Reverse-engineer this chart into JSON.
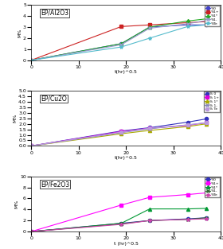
{
  "plot1": {
    "title": "EP/Al2O3",
    "xlabel": "t(hr)^0.5",
    "ylabel": "M%",
    "xlim": [
      0,
      40
    ],
    "ylim": [
      0,
      5
    ],
    "yticks": [
      0,
      1,
      2,
      3,
      4,
      5
    ],
    "xticks": [
      0,
      10,
      20,
      30,
      40
    ],
    "series": [
      {
        "label": "%0",
        "color": "#4444cc",
        "marker": "o",
        "markersize": 3,
        "x": [
          0,
          19,
          25,
          33,
          37
        ],
        "y": [
          0,
          1.5,
          3.0,
          3.2,
          3.2
        ]
      },
      {
        "label": "%1+",
        "color": "#cc2222",
        "marker": "s",
        "markersize": 3,
        "x": [
          0,
          19,
          25,
          33,
          37
        ],
        "y": [
          0,
          3.05,
          3.2,
          3.4,
          3.5
        ]
      },
      {
        "label": "%1*",
        "color": "#22aa22",
        "marker": "^",
        "markersize": 3,
        "x": [
          0,
          19,
          25,
          33,
          37
        ],
        "y": [
          0,
          1.5,
          3.0,
          3.55,
          3.75
        ]
      },
      {
        "label": "%1-",
        "color": "#9999cc",
        "marker": "x",
        "markersize": 3,
        "x": [
          0,
          19,
          25,
          33,
          37
        ],
        "y": [
          0,
          1.4,
          2.9,
          3.3,
          3.6
        ]
      },
      {
        "label": "%Te",
        "color": "#55bbcc",
        "marker": "*",
        "markersize": 3,
        "x": [
          0,
          19,
          25,
          33,
          37
        ],
        "y": [
          0,
          1.2,
          2.0,
          3.05,
          3.2
        ]
      }
    ]
  },
  "plot2": {
    "title": "EP/Cu2O",
    "xlabel": "t(hr)^0.5",
    "ylabel": "M%",
    "xlim": [
      0,
      40
    ],
    "ylim": [
      0,
      5
    ],
    "yticks": [
      0,
      0.5,
      1.0,
      1.5,
      2.0,
      2.5,
      3.0,
      3.5,
      4.0,
      4.5,
      5.0
    ],
    "xticks": [
      0,
      10,
      20,
      30,
      40
    ],
    "series": [
      {
        "label": "% 0",
        "color": "#3333bb",
        "marker": "o",
        "markersize": 3,
        "x": [
          0,
          19,
          25,
          33,
          37
        ],
        "y": [
          0,
          1.35,
          1.65,
          2.15,
          2.45
        ]
      },
      {
        "label": "% 1+",
        "color": "#dd00dd",
        "marker": "s",
        "markersize": 3,
        "x": [
          0,
          19,
          25,
          33,
          37
        ],
        "y": [
          0,
          1.3,
          1.6,
          1.85,
          2.1
        ]
      },
      {
        "label": "% 1*",
        "color": "#aaaa00",
        "marker": "^",
        "markersize": 3,
        "x": [
          0,
          19,
          25,
          33,
          37
        ],
        "y": [
          0,
          1.1,
          1.4,
          1.75,
          2.0
        ]
      },
      {
        "label": "% 1-",
        "color": "#8888bb",
        "marker": "x",
        "markersize": 3,
        "x": [
          0,
          19,
          25,
          33,
          37
        ],
        "y": [
          0,
          1.2,
          1.55,
          1.9,
          2.1
        ]
      },
      {
        "label": "% Te",
        "color": "#bb99dd",
        "marker": "o",
        "markersize": 3,
        "x": [
          0,
          19,
          25,
          33,
          37
        ],
        "y": [
          0,
          1.25,
          1.6,
          1.9,
          2.1
        ]
      }
    ]
  },
  "plot3": {
    "title": "EP/Fe2O3",
    "xlabel": "t (hr)^0.5",
    "ylabel": "M%",
    "xlim": [
      0,
      40
    ],
    "ylim": [
      0,
      10
    ],
    "yticks": [
      0,
      2,
      4,
      6,
      8,
      10
    ],
    "xticks": [
      0,
      10,
      20,
      30,
      40
    ],
    "series": [
      {
        "label": "%0",
        "color": "#3333bb",
        "marker": "o",
        "markersize": 3,
        "x": [
          0,
          19,
          25,
          33,
          37
        ],
        "y": [
          0,
          1.5,
          2.0,
          2.3,
          2.5
        ]
      },
      {
        "label": "%1+",
        "color": "#ff00ff",
        "marker": "s",
        "markersize": 3,
        "x": [
          0,
          19,
          25,
          33,
          37
        ],
        "y": [
          0,
          4.8,
          6.2,
          6.7,
          7.0
        ]
      },
      {
        "label": "%1*",
        "color": "#009933",
        "marker": "^",
        "markersize": 3,
        "x": [
          0,
          19,
          25,
          33,
          37
        ],
        "y": [
          0,
          1.5,
          4.1,
          4.1,
          4.2
        ]
      },
      {
        "label": "%1-",
        "color": "#336633",
        "marker": "x",
        "markersize": 3,
        "x": [
          0,
          19,
          25,
          33,
          37
        ],
        "y": [
          0,
          1.4,
          2.0,
          2.2,
          2.5
        ]
      },
      {
        "label": "%Te",
        "color": "#cc44aa",
        "marker": "*",
        "markersize": 3,
        "x": [
          0,
          19,
          25,
          33,
          37
        ],
        "y": [
          0,
          1.3,
          2.0,
          2.2,
          2.3
        ]
      }
    ]
  }
}
